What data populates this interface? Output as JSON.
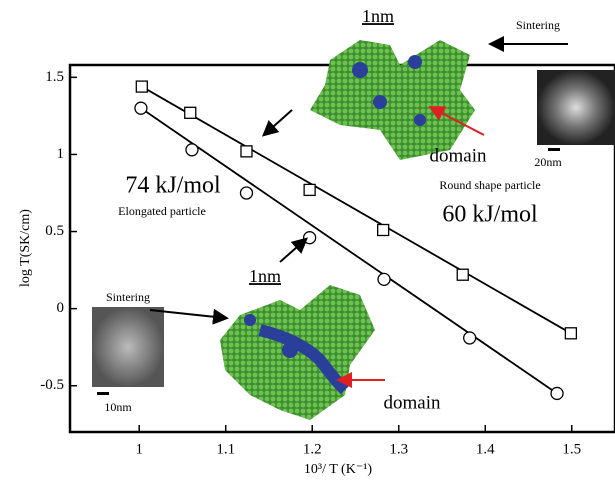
{
  "chart_data": {
    "type": "scatter",
    "x_label": "10³/ T (K⁻¹)",
    "y_label": "log T(SK/cm)",
    "xlim": [
      0.92,
      1.55
    ],
    "ylim": [
      -0.8,
      1.58
    ],
    "xticks": [
      1.0,
      1.1,
      1.2,
      1.3,
      1.4,
      1.5
    ],
    "yticks": [
      1.5,
      1.0,
      0.5,
      0.0,
      -0.5
    ],
    "series": [
      {
        "marker": "square",
        "color": "#000000",
        "x": [
          1.003,
          1.059,
          1.124,
          1.197,
          1.282,
          1.374,
          1.499
        ],
        "values": [
          1.44,
          1.27,
          1.02,
          0.77,
          0.51,
          0.22,
          -0.16
        ]
      },
      {
        "marker": "circle",
        "color": "#000000",
        "x": [
          1.002,
          1.061,
          1.124,
          1.197,
          1.283,
          1.382,
          1.483
        ],
        "values": [
          1.3,
          1.03,
          0.75,
          0.46,
          0.19,
          -0.19,
          -0.55
        ]
      }
    ],
    "annotations": [
      "1nm",
      "Sintering",
      "domain",
      "20nm",
      "Round shape particle",
      "60 kJ/mol",
      "74 kJ/mol",
      "Elongated particle",
      "1nm",
      "Sintering",
      "10nm",
      "domain"
    ]
  }
}
